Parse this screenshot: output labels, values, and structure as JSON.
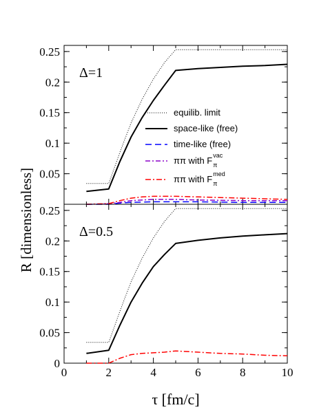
{
  "chart_data": {
    "type": "line",
    "xlabel": "τ  [fm/c]",
    "ylabel": "R  [dimensionless]",
    "xlim": [
      0,
      10
    ],
    "ylim": [
      0,
      0.26
    ],
    "grid": false,
    "x_ticks": [
      "0",
      "2",
      "4",
      "6",
      "8",
      "10"
    ],
    "y_ticks_top": [
      "0.05",
      "0.1",
      "0.15",
      "0.2",
      "0.25"
    ],
    "y_ticks_bottom": [
      "0",
      "0.05",
      "0.1",
      "0.15",
      "0.2",
      "0.25"
    ],
    "legend_location": "top-right panel",
    "styles": {
      "equilibrium": {
        "color": "#000000",
        "dash": "1,2",
        "width": 1
      },
      "space": {
        "color": "#000000",
        "dash": "",
        "width": 2
      },
      "time": {
        "color": "#0000ff",
        "dash": "9,5",
        "width": 1.5
      },
      "pivac": {
        "color": "#8b00c8",
        "dash": "7,3,2,3",
        "width": 1.5
      },
      "pimed": {
        "color": "#ff0000",
        "dash": "8,3,2,3",
        "width": 1.5
      }
    },
    "legend": [
      {
        "key": "equilibrium",
        "text": "equilib. limit",
        "sup": ""
      },
      {
        "key": "space",
        "text": "space-like (free)",
        "sup": ""
      },
      {
        "key": "time",
        "text": "time-like (free)",
        "sup": ""
      },
      {
        "key": "pivac",
        "text": "ππ with F",
        "sub": "π",
        "sup": "vac"
      },
      {
        "key": "pimed",
        "text": "ππ with F",
        "sub": "π",
        "sup": "med"
      }
    ],
    "panels": [
      {
        "label": "Δ=1",
        "series": [
          {
            "key": "equilibrium",
            "x": [
              1,
              2,
              2,
              2.5,
              3,
              3.5,
              4,
              4.5,
              5,
              10
            ],
            "y": [
              0.034,
              0.034,
              0.034,
              0.085,
              0.133,
              0.172,
              0.205,
              0.232,
              0.253,
              0.253
            ]
          },
          {
            "key": "space",
            "x": [
              1,
              2,
              2.5,
              3,
              3.5,
              4,
              4.5,
              5,
              6,
              7,
              8,
              9,
              10
            ],
            "y": [
              0.021,
              0.025,
              0.07,
              0.11,
              0.142,
              0.17,
              0.195,
              0.219,
              0.222,
              0.224,
              0.226,
              0.227,
              0.229
            ]
          },
          {
            "key": "time",
            "x": [
              1,
              2,
              2.5,
              3,
              4,
              5,
              6,
              8,
              10
            ],
            "y": [
              0,
              0,
              0.002,
              0.003,
              0.004,
              0.004,
              0.004,
              0.003,
              0.003
            ]
          },
          {
            "key": "pivac",
            "x": [
              1,
              2,
              2.5,
              3,
              4,
              5,
              6,
              8,
              10
            ],
            "y": [
              0,
              0.001,
              0.003,
              0.006,
              0.008,
              0.008,
              0.007,
              0.006,
              0.006
            ]
          },
          {
            "key": "pimed",
            "x": [
              1,
              2,
              2.5,
              3,
              3.5,
              4,
              4.5,
              5,
              6,
              7,
              8,
              9,
              10
            ],
            "y": [
              0,
              0.001,
              0.006,
              0.01,
              0.012,
              0.013,
              0.013,
              0.013,
              0.012,
              0.011,
              0.01,
              0.009,
              0.008
            ]
          }
        ]
      },
      {
        "label": "Δ=0.5",
        "series": [
          {
            "key": "equilibrium",
            "x": [
              1,
              2,
              2,
              2.5,
              3,
              3.5,
              4,
              4.5,
              5,
              10
            ],
            "y": [
              0.034,
              0.034,
              0.034,
              0.085,
              0.133,
              0.172,
              0.205,
              0.232,
              0.253,
              0.253
            ]
          },
          {
            "key": "space",
            "x": [
              1,
              2,
              2.5,
              3,
              3.5,
              4,
              4.5,
              5,
              6,
              7,
              8,
              9,
              10
            ],
            "y": [
              0.016,
              0.021,
              0.062,
              0.1,
              0.131,
              0.158,
              0.178,
              0.196,
              0.201,
              0.205,
              0.208,
              0.21,
              0.212
            ]
          },
          {
            "key": "pimed",
            "x": [
              1,
              2,
              2.5,
              3,
              3.5,
              4,
              4.5,
              5,
              6,
              7,
              8,
              9,
              10
            ],
            "y": [
              0,
              0,
              0.008,
              0.014,
              0.016,
              0.017,
              0.018,
              0.02,
              0.018,
              0.016,
              0.015,
              0.013,
              0.012
            ]
          }
        ]
      }
    ]
  }
}
